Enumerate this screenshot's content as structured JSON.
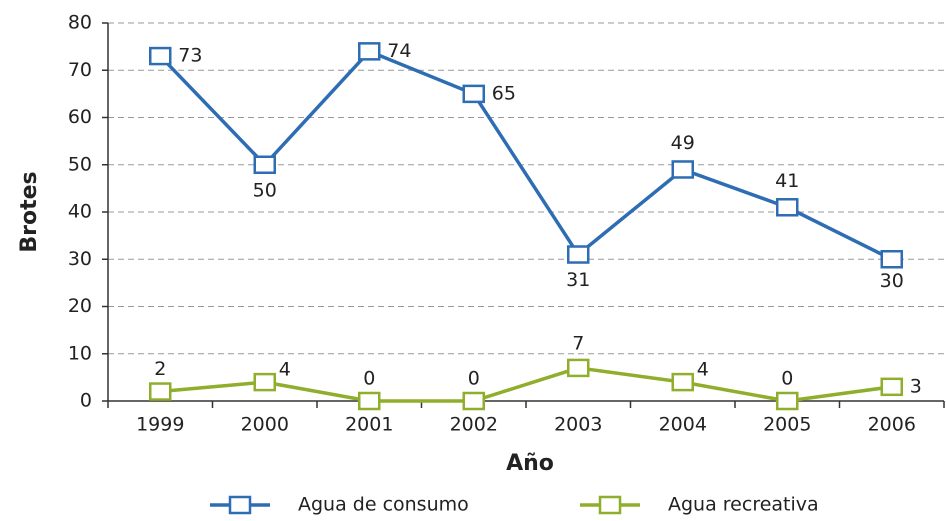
{
  "chart_data": {
    "type": "line",
    "x_label": "Año",
    "y_label": "Brotes",
    "categories": [
      "1999",
      "2000",
      "2001",
      "2002",
      "2003",
      "2004",
      "2005",
      "2006"
    ],
    "series": [
      {
        "name": "Agua de consumo",
        "color": "#2e6db4",
        "values": [
          73,
          50,
          74,
          65,
          31,
          49,
          41,
          30
        ]
      },
      {
        "name": "Agua recreativa",
        "color": "#8fae2c",
        "values": [
          2,
          4,
          0,
          0,
          7,
          4,
          0,
          3
        ]
      }
    ],
    "ylim": [
      0,
      80
    ],
    "yticks": [
      0,
      10,
      20,
      30,
      40,
      50,
      60,
      70,
      80
    ],
    "grid": true,
    "legend": "bottom"
  }
}
